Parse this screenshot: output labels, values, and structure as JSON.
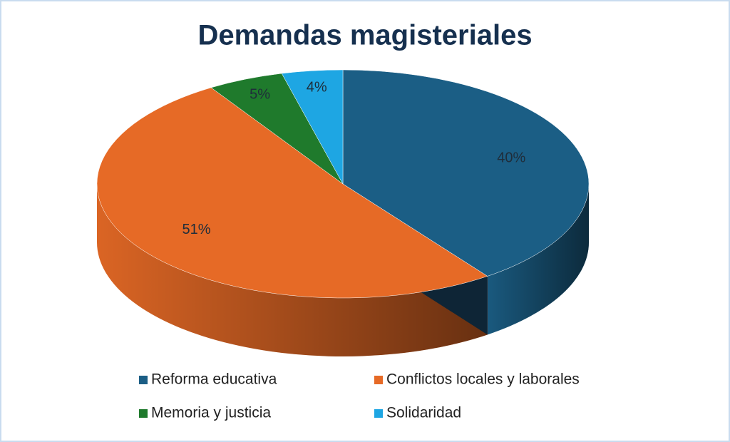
{
  "chart_data": {
    "type": "pie3d",
    "title": "Demandas magisteriales",
    "categories": [
      "Reforma educativa",
      "Conflictos locales y laborales",
      "Memoria y justicia",
      "Solidaridad"
    ],
    "values": [
      40,
      51,
      5,
      4
    ],
    "value_labels": [
      "40%",
      "51%",
      "5%",
      "4%"
    ],
    "colors": [
      "#1b5e85",
      "#e66a26",
      "#1f7a2c",
      "#1ea6e3"
    ],
    "legend": "bottom"
  }
}
